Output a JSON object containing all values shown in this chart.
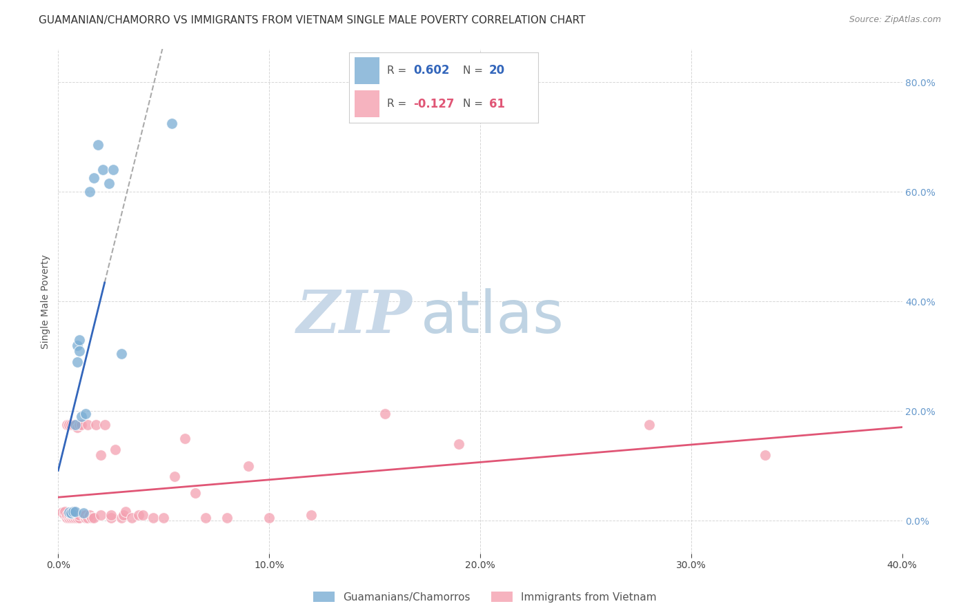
{
  "title": "GUAMANIAN/CHAMORRO VS IMMIGRANTS FROM VIETNAM SINGLE MALE POVERTY CORRELATION CHART",
  "source": "Source: ZipAtlas.com",
  "ylabel": "Single Male Poverty",
  "xlim": [
    0.0,
    0.4
  ],
  "ylim": [
    -0.06,
    0.86
  ],
  "yticks": [
    0.0,
    0.2,
    0.4,
    0.6,
    0.8
  ],
  "xticks": [
    0.0,
    0.1,
    0.2,
    0.3,
    0.4
  ],
  "series1_name": "Guamanians/Chamorros",
  "series1_color": "#7aadd4",
  "series1_line_color": "#3366BB",
  "series1_R": "0.602",
  "series1_N": "20",
  "series2_name": "Immigrants from Vietnam",
  "series2_color": "#f4a0b0",
  "series2_line_color": "#e05575",
  "series2_R": "-0.127",
  "series2_N": "61",
  "background_color": "#ffffff",
  "watermark_zip": "ZIP",
  "watermark_atlas": "atlas",
  "watermark_color": "#c8d8e8",
  "grid_color": "#cccccc",
  "right_axis_color": "#6699CC",
  "blue_scatter_x": [
    0.005,
    0.006,
    0.007,
    0.008,
    0.008,
    0.009,
    0.009,
    0.01,
    0.01,
    0.011,
    0.012,
    0.013,
    0.015,
    0.017,
    0.019,
    0.021,
    0.024,
    0.026,
    0.03,
    0.054
  ],
  "blue_scatter_y": [
    0.015,
    0.014,
    0.016,
    0.016,
    0.175,
    0.29,
    0.32,
    0.31,
    0.33,
    0.19,
    0.014,
    0.195,
    0.6,
    0.625,
    0.685,
    0.64,
    0.615,
    0.64,
    0.305,
    0.725
  ],
  "pink_scatter_x": [
    0.002,
    0.003,
    0.003,
    0.004,
    0.004,
    0.004,
    0.005,
    0.005,
    0.005,
    0.006,
    0.006,
    0.006,
    0.006,
    0.007,
    0.007,
    0.007,
    0.007,
    0.008,
    0.008,
    0.009,
    0.009,
    0.009,
    0.01,
    0.01,
    0.01,
    0.011,
    0.012,
    0.013,
    0.013,
    0.014,
    0.014,
    0.015,
    0.016,
    0.017,
    0.018,
    0.02,
    0.02,
    0.022,
    0.025,
    0.025,
    0.027,
    0.03,
    0.031,
    0.032,
    0.035,
    0.038,
    0.04,
    0.045,
    0.05,
    0.055,
    0.06,
    0.065,
    0.07,
    0.08,
    0.09,
    0.1,
    0.12,
    0.155,
    0.19,
    0.28,
    0.335
  ],
  "pink_scatter_y": [
    0.015,
    0.01,
    0.016,
    0.005,
    0.01,
    0.175,
    0.005,
    0.01,
    0.175,
    0.005,
    0.01,
    0.015,
    0.175,
    0.005,
    0.01,
    0.016,
    0.175,
    0.005,
    0.01,
    0.005,
    0.01,
    0.17,
    0.005,
    0.01,
    0.175,
    0.175,
    0.01,
    0.005,
    0.01,
    0.005,
    0.175,
    0.01,
    0.005,
    0.005,
    0.175,
    0.01,
    0.12,
    0.175,
    0.005,
    0.01,
    0.13,
    0.005,
    0.01,
    0.016,
    0.005,
    0.01,
    0.01,
    0.005,
    0.005,
    0.08,
    0.15,
    0.05,
    0.005,
    0.005,
    0.1,
    0.005,
    0.01,
    0.195,
    0.14,
    0.175,
    0.12
  ],
  "title_fontsize": 11,
  "axis_label_fontsize": 10,
  "tick_fontsize": 10,
  "legend_fontsize": 11
}
